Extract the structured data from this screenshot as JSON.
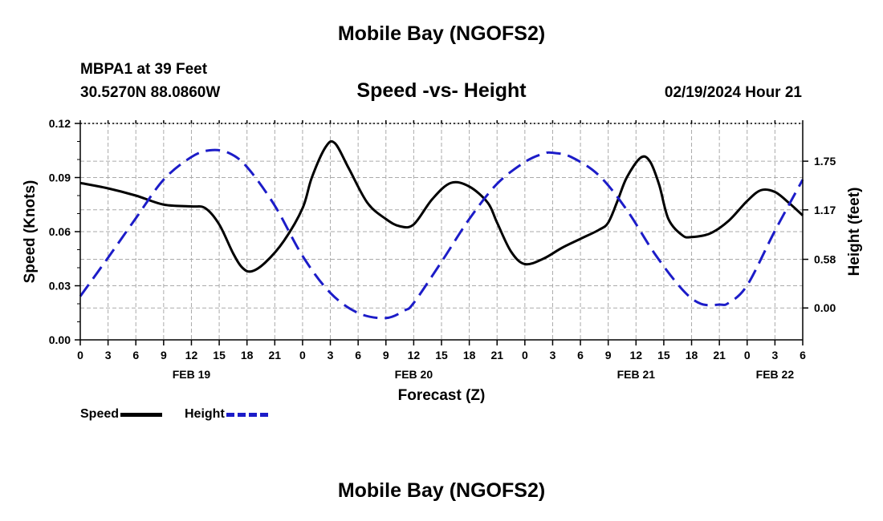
{
  "page_title": "Mobile Bay (NGOFS2)",
  "station_label": "MBPA1 at 39 Feet",
  "coordinates": "30.5270N  88.0860W",
  "valid_time": "02/19/2024 Hour 21",
  "colors": {
    "speed": "#000000",
    "height": "#1c1cc8",
    "grid": "#aaaaaa"
  },
  "chart_data": {
    "type": "line",
    "title": "Speed -vs- Height",
    "xlabel": "Forecast (Z)",
    "y_left_label": "Speed (Knots)",
    "y_right_label": "Height (feet)",
    "xlim": [
      0,
      78
    ],
    "ylim_left": [
      0,
      0.12
    ],
    "ylim_right": [
      -0.38,
      2.2
    ],
    "grid": true,
    "x_tick_labels": [
      "0",
      "3",
      "6",
      "9",
      "12",
      "15",
      "18",
      "21",
      "0",
      "3",
      "6",
      "9",
      "12",
      "15",
      "18",
      "21",
      "0",
      "3",
      "6",
      "9",
      "12",
      "15",
      "18",
      "21",
      "0",
      "3",
      "6"
    ],
    "left_tick_labels": [
      "0.00",
      "0.03",
      "0.06",
      "0.09",
      "0.12"
    ],
    "left_tick_values": [
      0,
      0.03,
      0.06,
      0.09,
      0.12
    ],
    "right_tick_labels": [
      "0.00",
      "0.58",
      "1.17",
      "1.75"
    ],
    "right_tick_values": [
      0,
      0.58,
      1.17,
      1.75
    ],
    "date_labels": [
      {
        "label": "FEB 19",
        "x": 12
      },
      {
        "label": "FEB 20",
        "x": 36
      },
      {
        "label": "FEB 21",
        "x": 60
      },
      {
        "label": "FEB 22",
        "x": 75
      }
    ],
    "legend_position": "bottom-left",
    "series": [
      {
        "name": "Speed",
        "axis": "left",
        "style": "solid",
        "x": [
          0,
          3,
          6,
          9,
          12,
          13.5,
          15,
          16.5,
          17.5,
          18.5,
          20,
          22,
          24,
          25,
          26.5,
          27.5,
          29,
          31,
          33,
          34.5,
          36,
          38,
          40,
          42,
          44,
          45,
          46.5,
          48,
          50,
          52,
          54,
          56,
          57,
          58,
          59,
          60.5,
          61.5,
          62.5,
          63.5,
          65,
          66,
          68,
          70,
          72,
          73.5,
          75,
          76.5,
          78
        ],
        "y": [
          0.087,
          0.084,
          0.08,
          0.075,
          0.074,
          0.073,
          0.064,
          0.048,
          0.04,
          0.038,
          0.043,
          0.055,
          0.073,
          0.09,
          0.107,
          0.109,
          0.095,
          0.076,
          0.067,
          0.063,
          0.064,
          0.078,
          0.087,
          0.085,
          0.076,
          0.065,
          0.049,
          0.042,
          0.045,
          0.051,
          0.056,
          0.061,
          0.065,
          0.077,
          0.09,
          0.101,
          0.099,
          0.086,
          0.067,
          0.058,
          0.057,
          0.059,
          0.066,
          0.077,
          0.083,
          0.082,
          0.076,
          0.069
        ]
      },
      {
        "name": "Height",
        "axis": "right",
        "style": "dashed",
        "x": [
          0,
          3,
          6,
          9,
          12,
          14,
          16,
          18,
          21,
          24,
          27,
          30,
          33,
          35,
          36,
          39,
          42,
          45,
          48,
          50,
          51,
          53,
          56,
          59,
          62,
          65,
          67,
          69,
          70,
          72,
          75,
          78
        ],
        "y": [
          0.14,
          0.6,
          1.07,
          1.53,
          1.8,
          1.88,
          1.85,
          1.68,
          1.22,
          0.62,
          0.18,
          -0.06,
          -0.12,
          -0.03,
          0.06,
          0.55,
          1.06,
          1.48,
          1.74,
          1.84,
          1.85,
          1.8,
          1.58,
          1.17,
          0.65,
          0.22,
          0.05,
          0.04,
          0.06,
          0.27,
          0.92,
          1.53
        ]
      }
    ]
  }
}
